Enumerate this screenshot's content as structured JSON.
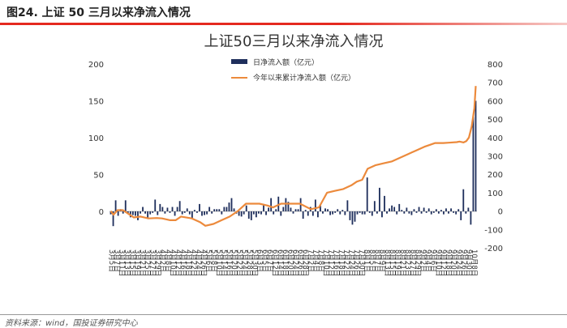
{
  "figure_label": "图24. 上证 50 三月以来净流入情况",
  "source": "资料来源：wind，国投证券研究中心",
  "chart_data": {
    "type": "bar+line",
    "title": "上证50三月以来净流入情况",
    "left_ylim": [
      -20,
      200
    ],
    "left_ticks": [
      "200",
      "150",
      "100",
      "50",
      "0"
    ],
    "right_ylim": [
      -200,
      800
    ],
    "right_ticks": [
      "800",
      "700",
      "600",
      "500",
      "400",
      "300",
      "200",
      "100",
      "0",
      "-100",
      "-200"
    ],
    "x_tick_labels": [
      "3月5日",
      "3月7日",
      "3月11日",
      "3月13日",
      "3月15日",
      "3月19日",
      "3月21日",
      "3月25日",
      "3月27日",
      "3月29日",
      "4月2日",
      "4月8日",
      "4月10日",
      "4月12日",
      "4月16日",
      "4月18日",
      "4月22日",
      "4月24日",
      "4月26日",
      "5月6日",
      "5月8日",
      "5月10日",
      "5月14日",
      "5月16日",
      "5月20日",
      "5月22日",
      "5月24日",
      "5月28日",
      "5月30日",
      "6月3日",
      "6月5日",
      "6月7日",
      "6月12日",
      "6月14日",
      "6月18日",
      "6月20日",
      "6月24日",
      "6月26日",
      "6月28日",
      "7月2日",
      "7月4日",
      "7月8日",
      "7月10日",
      "7月12日",
      "7月16日",
      "7月18日",
      "7月22日",
      "7月24日",
      "7月26日",
      "7月30日",
      "8月1日",
      "8月5日",
      "8月7日",
      "8月9日",
      "8月13日",
      "8月15日",
      "8月19日",
      "8月21日",
      "8月23日",
      "8月27日",
      "8月29日",
      "9月2日",
      "9月4日",
      "9月6日",
      "9月10日",
      "9月12日",
      "9月18日",
      "9月20日",
      "9月24日",
      "9月26日",
      "9月30日",
      "10月8日"
    ],
    "series": [
      {
        "name": "日净流入额（亿元）",
        "type": "bar",
        "axis": "left",
        "color": "#1f2f5c",
        "values": [
          -4,
          -20,
          15,
          -6,
          3,
          -3,
          15,
          -3,
          -8,
          -5,
          -6,
          -12,
          -3,
          6,
          -3,
          -10,
          -4,
          -2,
          16,
          -5,
          10,
          6,
          -3,
          5,
          -2,
          6,
          -6,
          6,
          14,
          -4,
          -2,
          4,
          -4,
          -10,
          2,
          -2,
          10,
          -6,
          -5,
          -4,
          6,
          -3,
          3,
          3,
          3,
          -4,
          6,
          6,
          12,
          18,
          4,
          -3,
          -6,
          -7,
          -4,
          8,
          -10,
          -12,
          -4,
          -8,
          -3,
          -4,
          10,
          -5,
          5,
          18,
          -4,
          3,
          20,
          -6,
          6,
          18,
          13,
          5,
          -3,
          3,
          3,
          18,
          -10,
          2,
          -6,
          6,
          -6,
          16,
          -8,
          8,
          -3,
          4,
          3,
          -5,
          -4,
          -2,
          3,
          -4,
          2,
          -5,
          15,
          -12,
          -18,
          -14,
          -4,
          -2,
          -4,
          -4,
          46,
          -2,
          -6,
          14,
          -3,
          32,
          -8,
          21,
          -3,
          4,
          8,
          6,
          -4,
          10,
          2,
          -3,
          5,
          -3,
          -5,
          3,
          -2,
          6,
          -3,
          5,
          -2,
          4,
          -4,
          -2,
          3,
          -3,
          2,
          -4,
          4,
          -3,
          4,
          -2,
          -4,
          3,
          -12,
          30,
          -3,
          5,
          -18,
          128,
          150
        ]
      },
      {
        "name": "今年以来累计净流入额（亿元）",
        "type": "line",
        "axis": "right",
        "color": "#ec8a3c",
        "points": [
          [
            0,
            0
          ],
          [
            2,
            -20
          ],
          [
            5,
            5
          ],
          [
            9,
            5
          ],
          [
            14,
            -20
          ],
          [
            17,
            -35
          ],
          [
            22,
            -30
          ],
          [
            28,
            -40
          ],
          [
            34,
            -38
          ],
          [
            38,
            -40
          ],
          [
            44,
            -50
          ],
          [
            48,
            -50
          ],
          [
            52,
            -30
          ],
          [
            60,
            -40
          ],
          [
            66,
            -60
          ],
          [
            70,
            -80
          ],
          [
            76,
            -70
          ],
          [
            82,
            -50
          ],
          [
            88,
            -30
          ],
          [
            94,
            0
          ],
          [
            100,
            40
          ],
          [
            104,
            40
          ],
          [
            110,
            40
          ],
          [
            116,
            30
          ],
          [
            120,
            20
          ],
          [
            126,
            40
          ],
          [
            132,
            40
          ],
          [
            140,
            40
          ],
          [
            148,
            10
          ],
          [
            154,
            20
          ],
          [
            160,
            100
          ],
          [
            166,
            110
          ],
          [
            172,
            120
          ],
          [
            178,
            140
          ],
          [
            182,
            160
          ],
          [
            186,
            170
          ],
          [
            190,
            230
          ],
          [
            196,
            250
          ],
          [
            202,
            260
          ],
          [
            208,
            270
          ],
          [
            214,
            290
          ],
          [
            220,
            310
          ],
          [
            226,
            330
          ],
          [
            232,
            350
          ],
          [
            236,
            360
          ],
          [
            240,
            370
          ],
          [
            246,
            370
          ],
          [
            250,
            372
          ],
          [
            256,
            375
          ],
          [
            258,
            378
          ],
          [
            261,
            373
          ],
          [
            263,
            380
          ],
          [
            265,
            400
          ],
          [
            267,
            460
          ],
          [
            269,
            560
          ],
          [
            270,
            680
          ]
        ]
      }
    ]
  }
}
